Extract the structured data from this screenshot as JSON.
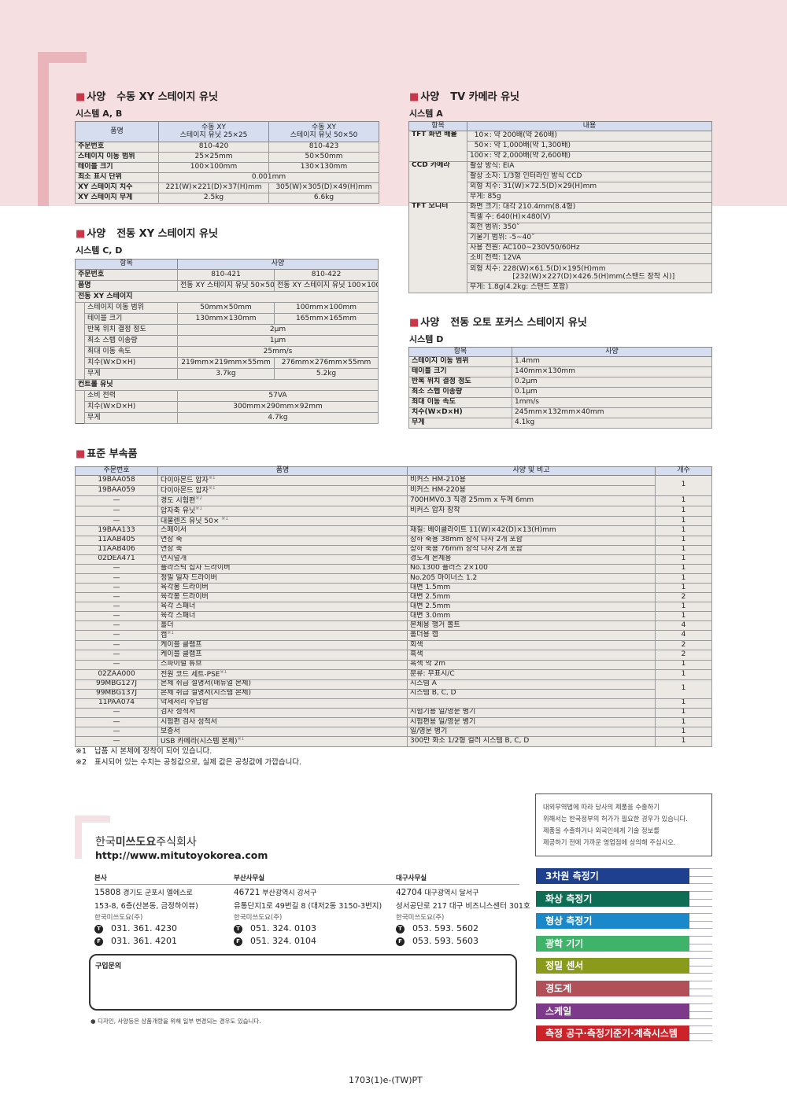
{
  "manual_xy": {
    "prefix": "사양",
    "title": "수동 XY 스테이지 유닛",
    "system": "시스템 A, B",
    "headers": [
      "품명",
      "수동 XY\n스테이지 유닛 25×25",
      "수동 XY\n스테이지 유닛 50×50"
    ],
    "rows": [
      [
        "주문번호",
        "810-420",
        "810-423"
      ],
      [
        "스테이지 이동 범위",
        "25×25mm",
        "50×50mm"
      ],
      [
        "테이블 크기",
        "100×100mm",
        "130×130mm"
      ],
      [
        "최소 표시 단위",
        "0.001mm"
      ],
      [
        "XY 스테이지 치수",
        "221(W)×221(D)×37(H)mm",
        "305(W)×305(D)×49(H)mm"
      ],
      [
        "XY 스테이지 무게",
        "2.5kg",
        "6.6kg"
      ]
    ]
  },
  "tv_camera": {
    "prefix": "사양",
    "title": "TV 카메라 유닛",
    "system": "시스템 A",
    "headers": [
      "항목",
      "내용"
    ],
    "groups": [
      {
        "label": "TFT 화면 배율",
        "values": [
          "  10×: 약 200배(약 260배)",
          "  50×: 약 1,000배(약 1,300배)",
          "100×: 약 2,000배(약 2,600배)"
        ]
      },
      {
        "label": "CCD 카메라",
        "values": [
          "촬상 방식: EIA",
          "촬상 소자: 1/3형 인터라인 방식 CCD",
          "외형 치수: 31(W)×72.5(D)×29(H)mm",
          "무게: 85g"
        ]
      },
      {
        "label": "TFT 모니터",
        "values": [
          "화면 크기: 대각 210.4mm(8.4형)",
          "픽셀 수: 640(H)×480(V)",
          "회전 범위: 350˚",
          "기울기 범위: -5∼40˚",
          "사용 전원: AC100∼230V50/60Hz",
          "소비 전력: 12VA",
          "외형 치수: 228(W)×61.5(D)×195(H)mm\n                   [232(W)×227(D)×426.5(H)mm(스탠드 장착 시)]",
          "무게: 1.8g(4.2kg: 스탠드 포함)"
        ]
      }
    ]
  },
  "electric_xy": {
    "prefix": "사양",
    "title": "전동 XY 스테이지 유닛",
    "system": "시스템 C, D",
    "headers": [
      "항목",
      "사양"
    ],
    "rows": [
      {
        "label": "주문번호",
        "values": [
          "810-421",
          "810-422"
        ]
      },
      {
        "label": "품명",
        "values": [
          "전동 XY 스테이지 유닛 50×50",
          "전동 XY 스테이지 유닛 100×100"
        ]
      },
      {
        "group": "전동 XY 스테이지",
        "items": [
          {
            "label": "스테이지 이동 범위",
            "values": [
              "50mm×50mm",
              "100mm×100mm"
            ]
          },
          {
            "label": "테이블 크기",
            "values": [
              "130mm×130mm",
              "165mm×165mm"
            ]
          },
          {
            "label": "반복 위치 결정 정도",
            "values": [
              "2μm"
            ]
          },
          {
            "label": "최소 스텝 이송량",
            "values": [
              "1μm"
            ]
          },
          {
            "label": "최대 이동 속도",
            "values": [
              "25mm/s"
            ]
          },
          {
            "label": "치수(W×D×H)",
            "values": [
              "219mm×219mm×55mm",
              "276mm×276mm×55mm"
            ]
          },
          {
            "label": "무게",
            "values": [
              "3.7kg",
              "5.2kg"
            ]
          }
        ]
      },
      {
        "group": "컨트롤 유닛",
        "items": [
          {
            "label": "소비 전력",
            "values": [
              "57VA"
            ]
          },
          {
            "label": "치수(W×D×H)",
            "values": [
              "300mm×290mm×92mm"
            ]
          },
          {
            "label": "무게",
            "values": [
              "4.7kg"
            ]
          }
        ]
      }
    ]
  },
  "autofocus": {
    "prefix": "사양",
    "title": "전동 오토 포커스 스테이지 유닛",
    "system": "시스템 D",
    "headers": [
      "항목",
      "사양"
    ],
    "rows": [
      [
        "스테이지 이동 범위",
        "1.4mm"
      ],
      [
        "테이블 크기",
        "140mm×130mm"
      ],
      [
        "반복 위치 결정 정도",
        "0.2μm"
      ],
      [
        "최소 스텝 이송량",
        "0.1μm"
      ],
      [
        "최대 이동 속도",
        "1mm/s"
      ],
      [
        "치수(W×D×H)",
        "245mm×132mm×40mm"
      ],
      [
        "무게",
        "4.1kg"
      ]
    ]
  },
  "accessories": {
    "title": "표준 부속품",
    "headers": [
      "주문번호",
      "품명",
      "사양 및 비고",
      "개수"
    ],
    "rows": [
      {
        "code": "19BAA058",
        "name": "다이아몬드 압자",
        "mark": "※1",
        "spec": "비커스 HM-210용",
        "qty": "1"
      },
      {
        "code": "19BAA059",
        "name": "다이아몬드 압자",
        "mark": "※1",
        "spec": "비커스 HM-220용",
        "qty": null
      },
      {
        "code": "—",
        "name": "경도 시험편",
        "mark": "※2",
        "spec": "700HMV0.3 직경 25mm x 두께 6mm",
        "qty": "1"
      },
      {
        "code": "—",
        "name": "압자축 유닛",
        "mark": "※1",
        "spec": "비커스 압자 장착",
        "qty": "1"
      },
      {
        "code": "—",
        "name": "대물렌즈 유닛 50× ",
        "mark": "※1",
        "spec": "",
        "qty": "1"
      },
      {
        "code": "19BAA133",
        "name": "스페이서",
        "mark": "",
        "spec": "재질: 베이클라이트 11(W)×42(D)×13(H)mm",
        "qty": "1"
      },
      {
        "code": "11AAB405",
        "name": "연장 축",
        "mark": "",
        "spec": "상하 축용 38mm 장착 나사 2개 포함",
        "qty": "1"
      },
      {
        "code": "11AAB406",
        "name": "연장 축",
        "mark": "",
        "spec": "상하 축용 76mm 장착 나사 2개 포함",
        "qty": "1"
      },
      {
        "code": "02DEA471",
        "name": "먼지덮개",
        "mark": "",
        "spec": "경도계 본체용",
        "qty": "1"
      },
      {
        "code": "—",
        "name": "플라스틱 십자 드라이버",
        "mark": "",
        "spec": "No.1300 플러스 2×100",
        "qty": "1"
      },
      {
        "code": "—",
        "name": "정밀 일자 드라이버",
        "mark": "",
        "spec": "No.205 마이너스 1.2",
        "qty": "1"
      },
      {
        "code": "—",
        "name": "육각봉 드라이버",
        "mark": "",
        "spec": "대변 1.5mm",
        "qty": "1"
      },
      {
        "code": "—",
        "name": "육각봉 드라이버",
        "mark": "",
        "spec": "대변 2.5mm",
        "qty": "2"
      },
      {
        "code": "—",
        "name": "육각 스패너",
        "mark": "",
        "spec": "대변 2.5mm",
        "qty": "1"
      },
      {
        "code": "—",
        "name": "육각 스패너",
        "mark": "",
        "spec": "대변 3.0mm",
        "qty": "1"
      },
      {
        "code": "—",
        "name": "홀더",
        "mark": "",
        "spec": "본체용 행거 볼트",
        "qty": "4"
      },
      {
        "code": "—",
        "name": "캡",
        "mark": "※1",
        "spec": "홀더용 캡",
        "qty": "4"
      },
      {
        "code": "—",
        "name": "케이블 클램프",
        "mark": "",
        "spec": "회색",
        "qty": "2"
      },
      {
        "code": "—",
        "name": "케이블 클램프",
        "mark": "",
        "spec": "흑색",
        "qty": "2"
      },
      {
        "code": "—",
        "name": "스파이럴 튜브",
        "mark": "",
        "spec": "흑색 약 2m",
        "qty": "1"
      },
      {
        "code": "02ZAA000",
        "name": "전원 코드 세트-PSE",
        "mark": "※1",
        "spec": "분류: 무표시/C",
        "qty": "1"
      },
      {
        "code": "99MBG127J",
        "name": "본체 취급 설명서(매뉴얼 본체)",
        "mark": "",
        "spec": "시스템 A",
        "qty": "1"
      },
      {
        "code": "99MBG137J",
        "name": "본체 취급 설명서(시스템 본체)",
        "mark": "",
        "spec": "시스템 B, C, D",
        "qty": null
      },
      {
        "code": "11PAA074",
        "name": "악세서리 수납함",
        "mark": "",
        "spec": "",
        "qty": "1"
      },
      {
        "code": "—",
        "name": "검사 성적서",
        "mark": "",
        "spec": "시험기용 일/영문 병기",
        "qty": "1"
      },
      {
        "code": "—",
        "name": "시험편 검사 성적서",
        "mark": "",
        "spec": "시험편용 일/영문 병기",
        "qty": "1"
      },
      {
        "code": "—",
        "name": "보증서",
        "mark": "",
        "spec": "일/영문 병기",
        "qty": "1"
      },
      {
        "code": "—",
        "name": "USB 카메라(시스템 본체)",
        "mark": "※1",
        "spec": "300만 화소 1/2형 컬러 시스템 B, C, D",
        "qty": "1"
      }
    ],
    "footnotes": [
      {
        "mark": "※1",
        "text": "납품 시 본체에 장착이 되어 있습니다."
      },
      {
        "mark": "※2",
        "text": "표시되어 있는 수치는 공칭값으로, 실제 값은 공칭값에 가깝습니다."
      }
    ]
  },
  "footer": {
    "company_pre": "한국",
    "company_bold": "미쓰도요",
    "company_post": "주식회사",
    "url": "http://www.mitutoyokorea.com",
    "offices": [
      {
        "name": "본사",
        "zip": "15808",
        "addr1": "경기도 군포시 엘에스로",
        "addr2": "153-8, 6층(산본동, 금정하이뷰)",
        "corp": "한국미쓰도요(주)",
        "tel": "031. 361. 4230",
        "fax": "031. 361. 4201"
      },
      {
        "name": "부산사무실",
        "zip": "46721",
        "addr1": "부산광역시 강서구",
        "addr2": "유통단지1로 49번길 8 (대저2동 3150-3번지)",
        "corp": "한국미쓰도요(주)",
        "tel": "051. 324. 0103",
        "fax": "051. 324. 0104"
      },
      {
        "name": "대구사무실",
        "zip": "42704",
        "addr1": "대구광역시 달서구",
        "addr2": "성서공단로 217 대구 비즈니스센터 301호",
        "corp": "한국미쓰도요(주)",
        "tel": "053. 593. 5602",
        "fax": "053. 593. 5603"
      }
    ],
    "tel_icon": "T",
    "fax_icon": "F",
    "inquiry_label": "구입문의",
    "note": "디자인, 사양등은 상품개량을 위해 일부 변경되는 경우도 있습니다.",
    "export_notice": "대외무역법에 따라 당사의 제품을 수출하기\n위해서는 한국정부의 허가가 필요한 경우가 있습니다.\n제품을 수출하거나 외국인에게 기술 정보를\n제공하기 전에 가까운 영업점에 상의해 주십시오.",
    "categories": [
      {
        "label": "3차원 측정기",
        "color": "#1f3f8f"
      },
      {
        "label": "화상 측정기",
        "color": "#0d6e55"
      },
      {
        "label": "형상 측정기",
        "color": "#1a88c9"
      },
      {
        "label": "광학 기기",
        "color": "#3fb36a"
      },
      {
        "label": "정밀 센서",
        "color": "#8a9a1a"
      },
      {
        "label": "경도계",
        "color": "#b2505a"
      },
      {
        "label": "스케일",
        "color": "#7d3a8a"
      },
      {
        "label": "측정 공구·측정기준기·계측시스템",
        "color": "#cc2229"
      }
    ],
    "page_code": "1703(1)e-(TW)PT"
  }
}
